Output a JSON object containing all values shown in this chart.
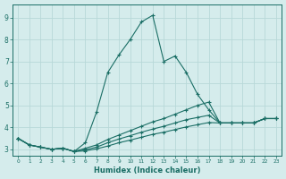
{
  "xlabel": "Humidex (Indice chaleur)",
  "background_color": "#d5ecec",
  "line_color": "#1a6e65",
  "grid_color": "#b8d8d8",
  "xlim": [
    -0.5,
    23.5
  ],
  "ylim": [
    2.7,
    9.6
  ],
  "xticks": [
    0,
    1,
    2,
    3,
    4,
    5,
    6,
    7,
    8,
    9,
    10,
    11,
    12,
    13,
    14,
    15,
    16,
    17,
    18,
    19,
    20,
    21,
    22,
    23
  ],
  "yticks": [
    3,
    4,
    5,
    6,
    7,
    8,
    9
  ],
  "series": [
    {
      "x": [
        0,
        1,
        2,
        3,
        4,
        5,
        6,
        7,
        8,
        9,
        10,
        11,
        12,
        13,
        14,
        15,
        16,
        17,
        18,
        19,
        20,
        21,
        22,
        23
      ],
      "y": [
        3.5,
        3.2,
        3.1,
        3.0,
        3.05,
        2.9,
        3.3,
        4.7,
        6.5,
        7.3,
        8.0,
        8.8,
        9.1,
        7.0,
        7.25,
        6.5,
        5.5,
        4.8,
        4.2,
        4.2,
        4.2,
        4.2,
        4.4,
        4.4
      ]
    },
    {
      "x": [
        0,
        1,
        2,
        3,
        4,
        5,
        6,
        7,
        8,
        9,
        10,
        11,
        12,
        13,
        14,
        15,
        16,
        17,
        18,
        19,
        20,
        21,
        22,
        23
      ],
      "y": [
        3.5,
        3.2,
        3.1,
        3.0,
        3.05,
        2.9,
        3.05,
        3.2,
        3.45,
        3.65,
        3.85,
        4.05,
        4.25,
        4.4,
        4.6,
        4.8,
        5.0,
        5.15,
        4.2,
        4.2,
        4.2,
        4.2,
        4.4,
        4.4
      ]
    },
    {
      "x": [
        0,
        1,
        2,
        3,
        4,
        5,
        6,
        7,
        8,
        9,
        10,
        11,
        12,
        13,
        14,
        15,
        16,
        17,
        18,
        19,
        20,
        21,
        22,
        23
      ],
      "y": [
        3.5,
        3.2,
        3.1,
        3.0,
        3.05,
        2.9,
        2.98,
        3.1,
        3.3,
        3.47,
        3.62,
        3.78,
        3.92,
        4.05,
        4.2,
        4.35,
        4.45,
        4.55,
        4.2,
        4.2,
        4.2,
        4.2,
        4.4,
        4.4
      ]
    },
    {
      "x": [
        0,
        1,
        2,
        3,
        4,
        5,
        6,
        7,
        8,
        9,
        10,
        11,
        12,
        13,
        14,
        15,
        16,
        17,
        18,
        19,
        20,
        21,
        22,
        23
      ],
      "y": [
        3.5,
        3.2,
        3.1,
        3.0,
        3.05,
        2.9,
        2.93,
        3.02,
        3.15,
        3.3,
        3.42,
        3.55,
        3.68,
        3.78,
        3.9,
        4.02,
        4.12,
        4.22,
        4.2,
        4.2,
        4.2,
        4.2,
        4.4,
        4.4
      ]
    }
  ]
}
